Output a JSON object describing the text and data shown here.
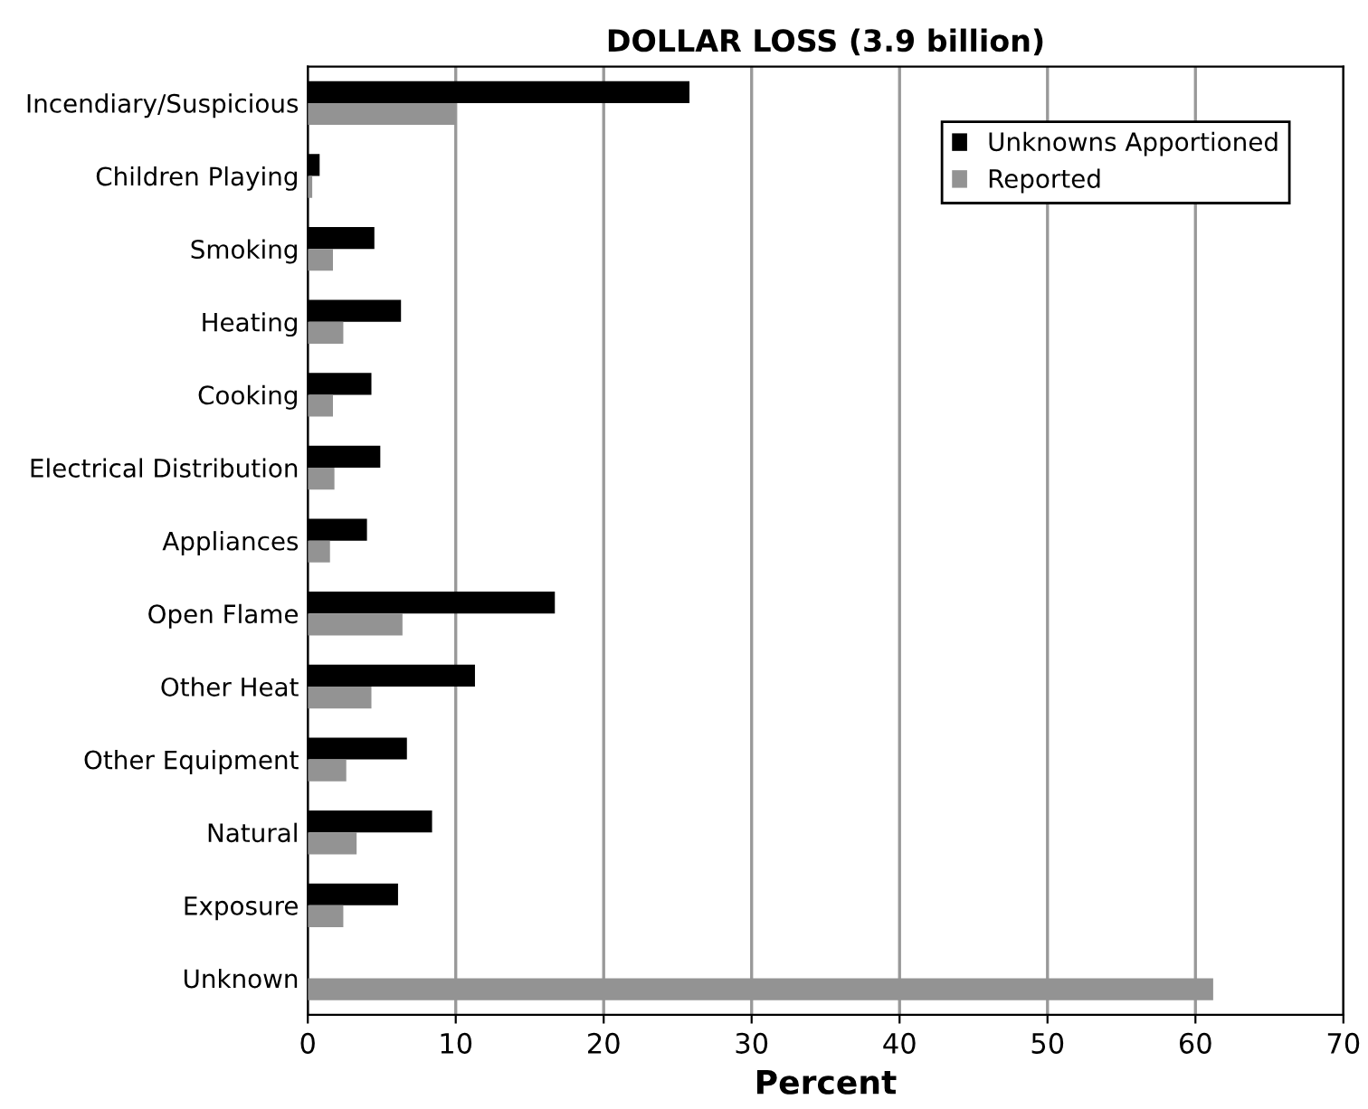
{
  "chart_data": {
    "type": "bar",
    "orientation": "horizontal",
    "title": "DOLLAR LOSS (3.9 billion)",
    "xlabel": "Percent",
    "categories": [
      "Incendiary/Suspicious",
      "Children Playing",
      "Smoking",
      "Heating",
      "Cooking",
      "Electrical Distribution",
      "Appliances",
      "Open Flame",
      "Other Heat",
      "Other Equipment",
      "Natural",
      "Exposure",
      "Unknown"
    ],
    "series": [
      {
        "name": "Unknowns Apportioned",
        "color": "#000000",
        "values": [
          25.8,
          0.8,
          4.5,
          6.3,
          4.3,
          4.9,
          4.0,
          16.7,
          11.3,
          6.7,
          8.4,
          6.1,
          0
        ]
      },
      {
        "name": "Reported",
        "color": "#939393",
        "values": [
          10.0,
          0.3,
          1.7,
          2.4,
          1.7,
          1.8,
          1.5,
          6.4,
          4.3,
          2.6,
          3.3,
          2.4,
          61.2
        ]
      }
    ],
    "xlim": [
      0,
      70
    ],
    "xticks": [
      0,
      10,
      20,
      30,
      40,
      50,
      60,
      70
    ],
    "grid": "x",
    "legend": "top right"
  }
}
